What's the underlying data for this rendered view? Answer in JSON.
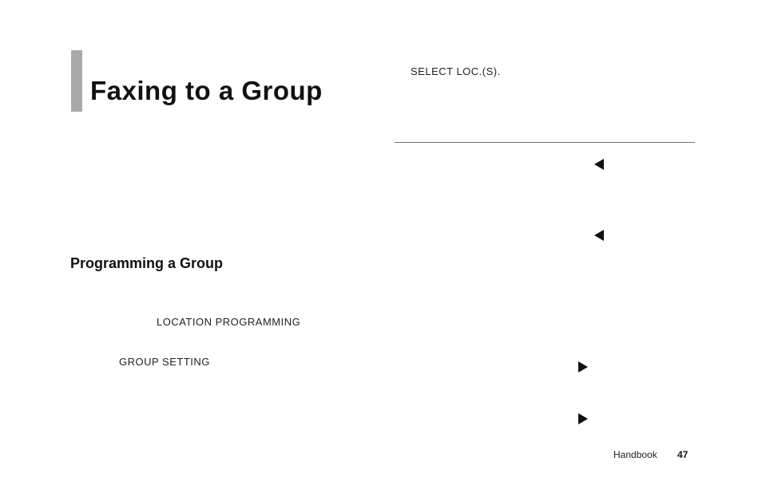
{
  "header": {
    "title": "Faxing to a Group",
    "select_loc": "SELECT LOC.(S)."
  },
  "section": {
    "heading": "Programming a Group",
    "location_programming": "LOCATION PROGRAMMING",
    "group_setting": "GROUP SETTING"
  },
  "footer": {
    "label": "Handbook",
    "page": "47"
  },
  "styles": {
    "bar_color": "#a9a9a9",
    "text_color": "#1a1a1a",
    "triangle_color": "#111111",
    "hr_color": "#777777",
    "background": "#ffffff"
  }
}
